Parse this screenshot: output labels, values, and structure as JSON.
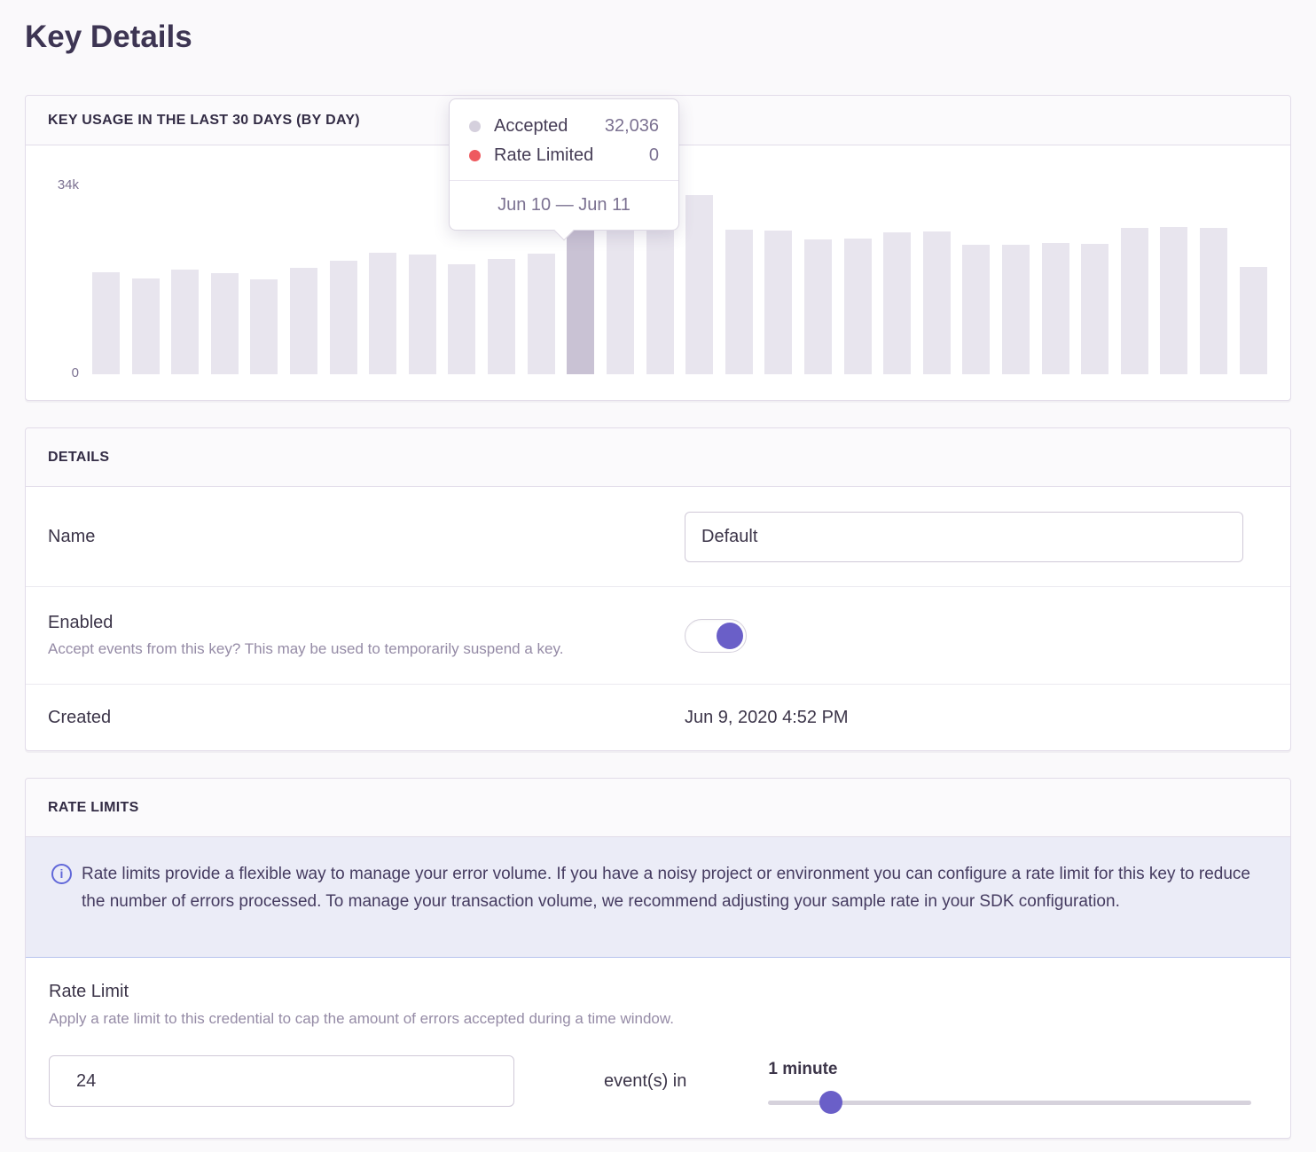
{
  "colors": {
    "accent_purple": "#6a5fc8",
    "bar": "#e8e5ee",
    "bar_highlight": "#c9c2d4",
    "accepted_dot": "#d5d0dd",
    "rate_limited_dot": "#ee5a5f",
    "alert_bg": "#ebecf7",
    "alert_border": "#b7c3ee"
  },
  "page": {
    "title": "Key Details"
  },
  "usage_panel": {
    "title": "KEY USAGE IN THE LAST 30 DAYS (BY DAY)",
    "y_axis_max": "34k",
    "y_axis_min": "0",
    "tooltip": {
      "series": [
        {
          "label": "Accepted",
          "value": "32,036"
        },
        {
          "label": "Rate Limited",
          "value": "0"
        }
      ],
      "date_range": "Jun 10 — Jun 11"
    }
  },
  "details_panel": {
    "title": "DETAILS",
    "name_row": {
      "label": "Name",
      "value": "Default"
    },
    "enabled_row": {
      "label": "Enabled",
      "help": "Accept events from this key? This may be used to temporarily suspend a key.",
      "enabled": true
    },
    "created_row": {
      "label": "Created",
      "value": "Jun 9, 2020 4:52 PM"
    }
  },
  "rate_limits_panel": {
    "title": "RATE LIMITS",
    "alert_text": "Rate limits provide a flexible way to manage your error volume. If you have a noisy project or environment you can configure a rate limit for this key to reduce the number of errors processed. To manage your transaction volume, we recommend adjusting your sample rate in your SDK configuration.",
    "rate_limit": {
      "label": "Rate Limit",
      "help": "Apply a rate limit to this credential to cap the amount of errors accepted during a time window.",
      "count_value": "24",
      "connector": "event(s) in",
      "window_label": "1 minute",
      "slider_percent": 13
    }
  },
  "chart_data": {
    "type": "bar",
    "title": "Key usage in the last 30 days (by day)",
    "ylim": [
      0,
      34000
    ],
    "y_max_tick": "34k",
    "y_min_tick": "0",
    "grid": false,
    "highlighted_index": 12,
    "highlighted_date_range": "Jun 10 — Jun 11",
    "series": [
      {
        "name": "Accepted",
        "values": [
          18100,
          17000,
          18600,
          18000,
          16800,
          18900,
          20100,
          21500,
          21300,
          19500,
          20400,
          21400,
          32036,
          25600,
          26000,
          31800,
          25600,
          25500,
          23900,
          24100,
          25200,
          25300,
          23000,
          23000,
          23300,
          23100,
          26000,
          26200,
          26000,
          19000
        ]
      },
      {
        "name": "Rate Limited",
        "values": [
          0,
          0,
          0,
          0,
          0,
          0,
          0,
          0,
          0,
          0,
          0,
          0,
          0,
          0,
          0,
          0,
          0,
          0,
          0,
          0,
          0,
          0,
          0,
          0,
          0,
          0,
          0,
          0,
          0,
          0
        ]
      }
    ]
  }
}
